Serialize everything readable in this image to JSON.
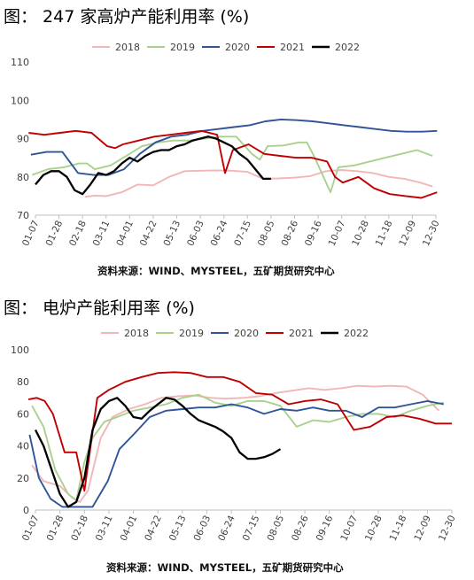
{
  "figures": [
    {
      "title": "图： 247 家高炉产能利用率 (%)",
      "source": "资料来源：WIND、MYSTEEL，五矿期货研究中心"
    },
    {
      "title": "图： 电炉产能利用率 (%)",
      "source": "资料来源：WIND、MYSTEEL，五矿期货研究中心"
    }
  ],
  "chart_data": [
    {
      "type": "line",
      "title": "",
      "xlabel": "",
      "ylabel": "",
      "ylim": [
        70,
        110
      ],
      "yticks": [
        70,
        80,
        90,
        100,
        110
      ],
      "x_tick_labels": [
        "01-07",
        "01-28",
        "02-18",
        "03-11",
        "04-01",
        "04-22",
        "05-13",
        "06-03",
        "06-24",
        "07-15",
        "08-05",
        "08-26",
        "09-16",
        "10-07",
        "10-28",
        "11-18",
        "12-09",
        "12-30"
      ],
      "x_domain_days": [
        7,
        364
      ],
      "grid": false,
      "legend": "top",
      "series": [
        {
          "name": "2018",
          "color": "#F2B6B6",
          "x": [
            "02-20",
            "03-01",
            "03-11",
            "03-25",
            "04-08",
            "04-22",
            "05-06",
            "05-20",
            "06-03",
            "06-17",
            "07-01",
            "07-15",
            "07-29",
            "08-12",
            "08-26",
            "09-09",
            "09-23",
            "10-07",
            "10-21",
            "11-04",
            "11-18",
            "12-02",
            "12-16",
            "12-27"
          ],
          "y": [
            74.8,
            75.1,
            75,
            76,
            78,
            77.8,
            80,
            81.5,
            81.6,
            81.7,
            81.6,
            81.3,
            79.5,
            79.6,
            79.8,
            80.2,
            81.5,
            81.8,
            81.5,
            81,
            80,
            79.5,
            78.5,
            77.5
          ]
        },
        {
          "name": "2019",
          "color": "#A9D18E",
          "x": [
            "01-04",
            "01-18",
            "02-01",
            "02-15",
            "02-22",
            "03-01",
            "03-15",
            "03-29",
            "04-12",
            "04-26",
            "05-10",
            "05-24",
            "06-07",
            "06-21",
            "07-05",
            "07-19",
            "07-26",
            "08-02",
            "08-16",
            "08-30",
            "09-06",
            "09-13",
            "09-27",
            "10-04",
            "10-18",
            "11-01",
            "11-15",
            "11-29",
            "12-13",
            "12-27"
          ],
          "y": [
            80.5,
            82,
            82.5,
            83.5,
            83.5,
            82,
            83,
            85.5,
            88,
            89,
            89.5,
            89.5,
            90,
            90.5,
            90.5,
            86,
            84.5,
            88,
            88.2,
            89,
            89,
            85,
            76,
            82.5,
            83,
            84,
            85,
            86,
            87,
            85.5
          ]
        },
        {
          "name": "2020",
          "color": "#2F5597",
          "x": [
            "01-03",
            "01-17",
            "01-31",
            "02-14",
            "02-28",
            "03-13",
            "03-27",
            "04-10",
            "04-24",
            "05-08",
            "05-22",
            "06-05",
            "06-19",
            "07-03",
            "07-17",
            "07-31",
            "08-14",
            "08-28",
            "09-11",
            "09-25",
            "10-09",
            "10-23",
            "11-06",
            "11-20",
            "12-04",
            "12-18",
            "12-31"
          ],
          "y": [
            85.8,
            86.5,
            86.5,
            81,
            80.5,
            80.5,
            82,
            86,
            89,
            90.5,
            91,
            92,
            92.5,
            93,
            93.5,
            94.5,
            95,
            94.8,
            94.5,
            94,
            93.5,
            93,
            92.5,
            92,
            91.8,
            91.8,
            92
          ]
        },
        {
          "name": "2021",
          "color": "#C00000",
          "x": [
            "01-01",
            "01-15",
            "01-29",
            "02-12",
            "02-26",
            "03-12",
            "03-19",
            "03-26",
            "04-09",
            "04-23",
            "05-07",
            "05-21",
            "06-04",
            "06-18",
            "06-25",
            "07-02",
            "07-16",
            "07-30",
            "08-13",
            "08-27",
            "09-10",
            "09-24",
            "10-01",
            "10-08",
            "10-22",
            "11-05",
            "11-19",
            "12-03",
            "12-17",
            "12-31"
          ],
          "y": [
            91.5,
            91,
            91.5,
            92,
            91.5,
            88,
            87.5,
            88.5,
            89.5,
            90.5,
            91,
            91.5,
            92,
            91,
            81,
            87,
            88.5,
            86,
            85.5,
            85,
            85,
            84,
            80,
            78.5,
            80,
            77,
            75.5,
            75,
            74.5,
            76
          ]
        },
        {
          "name": "2022",
          "color": "#000000",
          "x": [
            "01-07",
            "01-14",
            "01-21",
            "01-28",
            "02-04",
            "02-11",
            "02-18",
            "02-25",
            "03-04",
            "03-11",
            "03-18",
            "03-25",
            "04-01",
            "04-08",
            "04-15",
            "04-22",
            "04-29",
            "05-06",
            "05-13",
            "05-20",
            "05-27",
            "06-03",
            "06-10",
            "06-17",
            "06-24",
            "07-01",
            "07-08",
            "07-15",
            "07-22",
            "07-29",
            "08-05"
          ],
          "y": [
            78,
            80.5,
            81.5,
            81.5,
            80,
            76.5,
            75.5,
            78,
            81,
            80.5,
            81.5,
            83.5,
            85,
            84,
            85.5,
            86.5,
            87,
            87,
            88,
            88.5,
            89.5,
            90,
            90.5,
            90,
            89,
            88,
            86,
            84.5,
            82,
            79.5,
            79.5
          ]
        }
      ]
    },
    {
      "type": "line",
      "title": "",
      "xlabel": "",
      "ylabel": "",
      "ylim": [
        0,
        100
      ],
      "yticks": [
        0,
        20,
        40,
        60,
        80,
        100
      ],
      "x_tick_labels": [
        "01-07",
        "01-28",
        "02-18",
        "03-11",
        "04-01",
        "04-22",
        "05-13",
        "06-03",
        "06-24",
        "07-15",
        "08-05",
        "08-26",
        "09-16",
        "10-07",
        "10-28",
        "11-18",
        "12-09",
        "12-30"
      ],
      "x_domain_days": [
        7,
        364
      ],
      "grid": false,
      "legend": "top",
      "series": [
        {
          "name": "2018",
          "color": "#F2B6B6",
          "x": [
            "01-04",
            "01-14",
            "01-28",
            "02-07",
            "02-14",
            "02-21",
            "03-04",
            "03-14",
            "03-28",
            "04-11",
            "04-25",
            "05-09",
            "05-23",
            "06-06",
            "06-20",
            "07-04",
            "07-18",
            "08-01",
            "08-15",
            "08-29",
            "09-12",
            "09-26",
            "10-10",
            "10-24",
            "11-07",
            "11-21",
            "12-05",
            "12-19"
          ],
          "y": [
            28,
            18,
            15,
            8,
            5,
            12,
            45,
            58,
            63,
            66,
            70,
            71,
            71.5,
            70,
            69.5,
            70,
            71,
            73,
            74.5,
            76,
            75,
            76,
            77.5,
            77,
            77.5,
            77,
            72,
            62
          ]
        },
        {
          "name": "2019",
          "color": "#A9D18E",
          "x": [
            "01-04",
            "01-14",
            "01-24",
            "02-04",
            "02-11",
            "02-18",
            "02-25",
            "03-07",
            "03-18",
            "04-01",
            "04-15",
            "04-29",
            "05-13",
            "05-27",
            "06-10",
            "06-24",
            "07-08",
            "07-22",
            "08-05",
            "08-19",
            "09-02",
            "09-16",
            "09-30",
            "10-14",
            "10-28",
            "11-11",
            "11-25",
            "12-09",
            "12-23"
          ],
          "y": [
            65,
            52,
            25,
            10,
            6,
            30,
            45,
            55,
            58,
            62,
            64,
            66,
            70,
            72,
            67,
            65,
            68,
            68,
            65,
            52,
            56,
            55,
            58,
            60,
            60,
            58,
            62,
            65,
            67
          ]
        },
        {
          "name": "2020",
          "color": "#2F5597",
          "x": [
            "01-02",
            "01-10",
            "01-20",
            "01-30",
            "02-10",
            "02-25",
            "03-10",
            "03-20",
            "04-01",
            "04-15",
            "04-29",
            "05-13",
            "05-27",
            "06-10",
            "06-24",
            "07-08",
            "07-22",
            "08-05",
            "08-19",
            "09-02",
            "09-16",
            "09-30",
            "10-14",
            "10-28",
            "11-11",
            "11-25",
            "12-09",
            "12-23"
          ],
          "y": [
            47,
            20,
            7,
            2,
            2,
            2,
            18,
            38,
            47,
            58,
            62,
            63,
            64,
            64,
            66,
            64,
            60,
            63,
            62,
            64,
            62,
            62,
            58,
            64,
            64,
            66,
            68,
            66
          ]
        },
        {
          "name": "2021",
          "color": "#C00000",
          "x": [
            "01-01",
            "01-08",
            "01-15",
            "01-22",
            "02-01",
            "02-11",
            "02-18",
            "03-01",
            "03-11",
            "03-25",
            "04-08",
            "04-22",
            "05-06",
            "05-20",
            "06-03",
            "06-17",
            "07-01",
            "07-15",
            "07-29",
            "08-12",
            "08-26",
            "09-09",
            "09-23",
            "10-07",
            "10-21",
            "11-04",
            "11-18",
            "12-02",
            "12-16",
            "12-30"
          ],
          "y": [
            69,
            70,
            68,
            60,
            36,
            36,
            12,
            70,
            75,
            80,
            83,
            85.5,
            86,
            85.5,
            83,
            83,
            80,
            73,
            72,
            66,
            68,
            69,
            66,
            50,
            52,
            58,
            59,
            57,
            54,
            54
          ]
        },
        {
          "name": "2022",
          "color": "#000000",
          "x": [
            "01-07",
            "01-14",
            "01-21",
            "01-28",
            "02-04",
            "02-11",
            "02-18",
            "02-25",
            "03-04",
            "03-11",
            "03-18",
            "03-25",
            "04-01",
            "04-08",
            "04-15",
            "04-22",
            "04-29",
            "05-06",
            "05-13",
            "05-20",
            "05-27",
            "06-03",
            "06-10",
            "06-17",
            "06-24",
            "07-01",
            "07-08",
            "07-15",
            "07-22",
            "07-29",
            "08-05"
          ],
          "y": [
            50,
            40,
            25,
            10,
            2,
            5,
            20,
            50,
            63,
            68,
            70,
            65,
            58,
            57,
            62,
            66,
            70,
            69,
            65,
            60,
            56,
            54,
            52,
            49,
            45,
            36,
            32,
            32,
            33,
            35,
            38
          ]
        }
      ]
    }
  ]
}
